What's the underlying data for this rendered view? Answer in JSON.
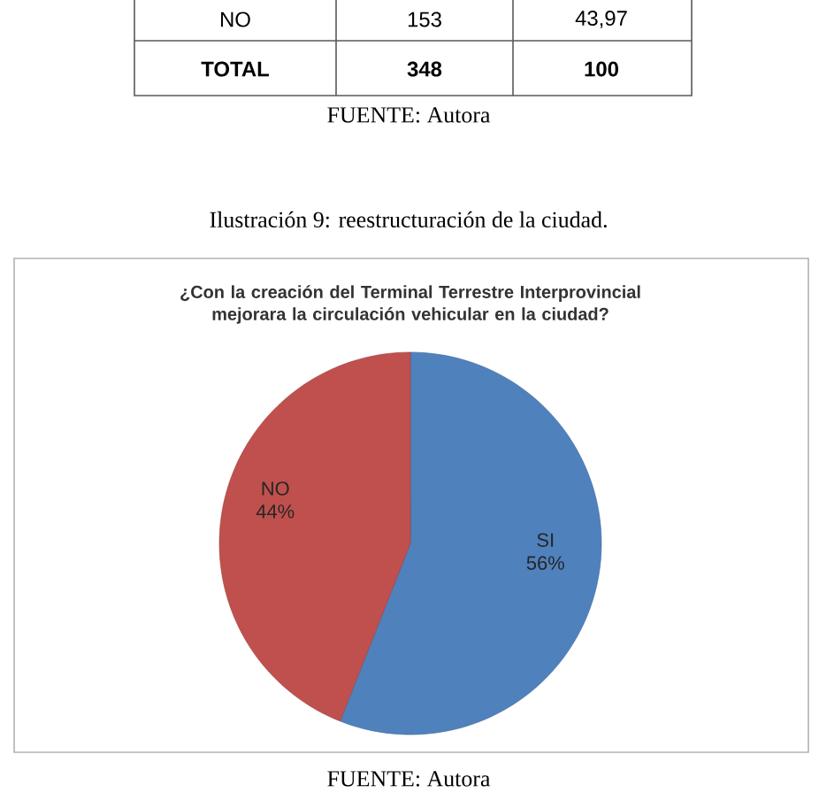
{
  "chart_data": {
    "type": "pie",
    "title": "¿Con la creación del Terminal Terrestre Interprovincial mejorara la circulación vehicular en la ciudad?",
    "categories": [
      "SI",
      "NO"
    ],
    "values": [
      56,
      44
    ],
    "colors": [
      "#4f81bd",
      "#c0504d"
    ],
    "value_labels": [
      "56%",
      "44%"
    ],
    "annotations": [
      "NO",
      "153",
      "43,97",
      "TOTAL",
      "348",
      "100",
      "FUENTE: Autora",
      "Ilustración 9: reestructuración de la ciudad.",
      "FUENTE: Autora"
    ]
  }
}
